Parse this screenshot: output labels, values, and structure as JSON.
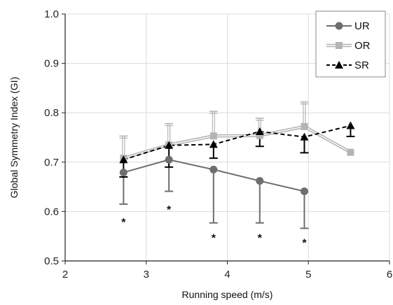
{
  "chart_data": {
    "type": "line",
    "xlabel": "Running speed (m/s)",
    "ylabel": "Global Symmetry Index (GI)",
    "xlim": [
      2,
      6
    ],
    "ylim": [
      0.5,
      1.0
    ],
    "x_ticks": [
      "2",
      "3",
      "4",
      "5",
      "6"
    ],
    "y_ticks": [
      "0.5",
      "0.6",
      "0.7",
      "0.8",
      "0.9",
      "1.0"
    ],
    "grid": true,
    "legend_position": "top-right",
    "significance_marker": "*",
    "series": [
      {
        "name": "UR",
        "color": "#6e6e6e",
        "marker": "circle",
        "line": "solid",
        "x": [
          2.72,
          3.28,
          3.83,
          4.4,
          4.95
        ],
        "values": [
          0.679,
          0.705,
          0.685,
          0.662,
          0.641
        ],
        "error_lower": [
          0.064,
          0.064,
          0.108,
          0.085,
          0.075
        ],
        "error_upper": [
          0.0,
          0.0,
          0.0,
          0.0,
          0.0
        ]
      },
      {
        "name": "OR",
        "color": "#b4b4b4",
        "marker": "square",
        "line": "solid-double",
        "x": [
          2.72,
          3.28,
          3.83,
          4.4,
          4.95,
          5.52
        ],
        "values": [
          0.708,
          0.735,
          0.753,
          0.754,
          0.772,
          0.72
        ],
        "error_lower": [
          0.0,
          0.0,
          0.0,
          0.0,
          0.0,
          0.0
        ],
        "error_upper": [
          0.045,
          0.043,
          0.05,
          0.035,
          0.05,
          0.0
        ]
      },
      {
        "name": "SR",
        "color": "#000000",
        "marker": "triangle",
        "line": "dashed",
        "x": [
          2.72,
          3.28,
          3.83,
          4.4,
          4.95,
          5.52
        ],
        "values": [
          0.705,
          0.734,
          0.736,
          0.762,
          0.751,
          0.774
        ],
        "error_lower": [
          0.035,
          0.044,
          0.028,
          0.03,
          0.032,
          0.022
        ],
        "error_upper": [
          0.0,
          0.0,
          0.0,
          0.0,
          0.0,
          0.0
        ]
      }
    ],
    "significance_x": [
      2.72,
      3.28,
      3.83,
      4.4,
      4.95
    ],
    "significance_y": [
      0.588,
      0.613,
      0.556,
      0.556,
      0.546
    ]
  }
}
